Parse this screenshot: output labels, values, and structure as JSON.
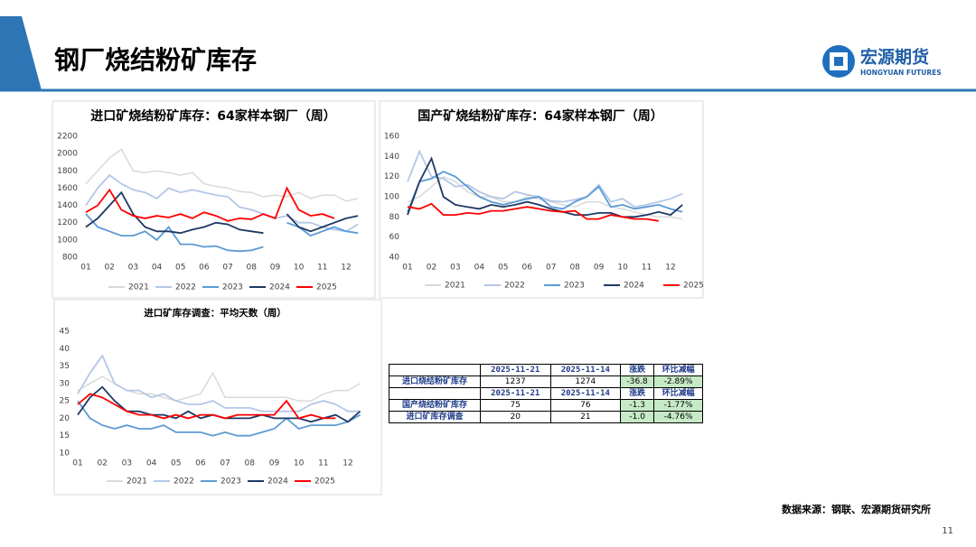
{
  "header": {
    "title": "钢厂烧结粉矿库存",
    "logo_cn": "宏源期货",
    "logo_en": "HONGYUAN FUTURES"
  },
  "chart_data": [
    {
      "type": "line",
      "title": "进口矿烧结粉矿库存：64家样本钢厂（周）",
      "categories": [
        "01",
        null,
        "02",
        null,
        "03",
        null,
        "04",
        null,
        "05",
        null,
        "06",
        null,
        "07",
        null,
        "08",
        null,
        "09",
        null,
        "10",
        null,
        "11",
        null,
        "12",
        null
      ],
      "ylim": [
        800,
        2200
      ],
      "yticks": [
        800,
        1000,
        1200,
        1400,
        1600,
        1800,
        2000,
        2200
      ],
      "series": [
        {
          "name": "2021",
          "color": "#d9d9d9",
          "values": [
            1650,
            1800,
            1950,
            2050,
            1800,
            1780,
            1800,
            1780,
            1750,
            1780,
            1650,
            1620,
            1600,
            1560,
            1550,
            1500,
            1520,
            1500,
            1550,
            1480,
            1520,
            1520,
            1450,
            1480
          ]
        },
        {
          "name": "2022",
          "color": "#b4c7e7",
          "values": [
            1400,
            1600,
            1750,
            1650,
            1580,
            1550,
            1480,
            1600,
            1550,
            1580,
            1550,
            1520,
            1500,
            1380,
            1350,
            1300,
            1250,
            1280,
            1200,
            1200,
            1150,
            1120,
            1100,
            1180
          ]
        },
        {
          "name": "2023",
          "color": "#5b9bd5",
          "values": [
            1300,
            1150,
            1100,
            1050,
            1050,
            1100,
            1000,
            1150,
            950,
            950,
            920,
            930,
            880,
            870,
            880,
            920,
            null,
            1200,
            1150,
            1050,
            1100,
            1150,
            1100,
            1080
          ]
        },
        {
          "name": "2024",
          "color": "#1f3864",
          "values": [
            1150,
            1250,
            1400,
            1550,
            1300,
            1150,
            1100,
            1100,
            1080,
            1120,
            1150,
            1200,
            1180,
            1120,
            1100,
            1080,
            null,
            1300,
            1150,
            1100,
            1150,
            1200,
            1250,
            1280
          ]
        },
        {
          "name": "2025",
          "color": "#ff0000",
          "values": [
            1320,
            1400,
            1580,
            1350,
            1280,
            1250,
            1280,
            1260,
            1300,
            1250,
            1320,
            1280,
            1220,
            1250,
            1240,
            1300,
            1250,
            1600,
            1350,
            1280,
            1300,
            1250,
            null,
            null
          ]
        }
      ]
    },
    {
      "type": "line",
      "title": "国产矿烧结粉矿库存：64家样本钢厂（周）",
      "categories": [
        "01",
        null,
        "02",
        null,
        "03",
        null,
        "04",
        null,
        "05",
        null,
        "06",
        null,
        "07",
        null,
        "08",
        null,
        "09",
        null,
        "10",
        null,
        "11",
        null,
        "12",
        null
      ],
      "ylim": [
        40,
        160
      ],
      "yticks": [
        40,
        60,
        80,
        100,
        120,
        140,
        160
      ],
      "series": [
        {
          "name": "2021",
          "color": "#d9d9d9",
          "values": [
            95,
            100,
            110,
            120,
            115,
            105,
            100,
            100,
            95,
            95,
            100,
            98,
            95,
            92,
            90,
            95,
            95,
            90,
            88,
            85,
            82,
            80,
            80,
            78
          ]
        },
        {
          "name": "2022",
          "color": "#b4c7e7",
          "values": [
            115,
            145,
            120,
            118,
            110,
            112,
            105,
            100,
            98,
            105,
            102,
            100,
            96,
            95,
            97,
            100,
            112,
            95,
            98,
            90,
            92,
            95,
            98,
            103
          ]
        },
        {
          "name": "2023",
          "color": "#5b9bd5",
          "values": [
            85,
            115,
            118,
            125,
            120,
            110,
            100,
            95,
            92,
            95,
            98,
            100,
            90,
            88,
            95,
            100,
            110,
            90,
            92,
            88,
            90,
            92,
            88,
            85
          ]
        },
        {
          "name": "2024",
          "color": "#1f3864",
          "values": [
            82,
            115,
            138,
            100,
            92,
            90,
            88,
            92,
            90,
            92,
            95,
            92,
            88,
            85,
            82,
            82,
            84,
            84,
            80,
            80,
            82,
            85,
            82,
            92
          ]
        },
        {
          "name": "2025",
          "color": "#ff0000",
          "values": [
            90,
            88,
            93,
            82,
            82,
            84,
            83,
            86,
            86,
            88,
            90,
            88,
            86,
            85,
            86,
            78,
            78,
            82,
            80,
            78,
            78,
            76,
            null,
            null
          ]
        }
      ]
    },
    {
      "type": "line",
      "title": "进口矿库存调查：平均天数（周）",
      "categories": [
        "01",
        null,
        "02",
        null,
        "03",
        null,
        "04",
        null,
        "05",
        null,
        "06",
        null,
        "07",
        null,
        "08",
        null,
        "09",
        null,
        "10",
        null,
        "11",
        null,
        "12",
        null
      ],
      "ylim": [
        10,
        45
      ],
      "yticks": [
        10,
        15,
        20,
        25,
        30,
        35,
        40,
        45
      ],
      "series": [
        {
          "name": "2021",
          "color": "#d9d9d9",
          "values": [
            28,
            30,
            32,
            30,
            28,
            27,
            27,
            26,
            25,
            26,
            27,
            33,
            26,
            26,
            26,
            26,
            26,
            26,
            25,
            25,
            27,
            28,
            28,
            30
          ]
        },
        {
          "name": "2022",
          "color": "#b4c7e7",
          "values": [
            27,
            33,
            38,
            30,
            28,
            28,
            26,
            27,
            25,
            24,
            24,
            25,
            23,
            23,
            23,
            22,
            22,
            22,
            22,
            24,
            25,
            24,
            22,
            22
          ]
        },
        {
          "name": "2023",
          "color": "#5b9bd5",
          "values": [
            25,
            20,
            18,
            17,
            18,
            17,
            17,
            18,
            16,
            16,
            16,
            15,
            16,
            15,
            15,
            16,
            17,
            20,
            17,
            18,
            18,
            18,
            19,
            21
          ]
        },
        {
          "name": "2024",
          "color": "#1f3864",
          "values": [
            21,
            26,
            29,
            25,
            22,
            22,
            21,
            21,
            20,
            22,
            20,
            21,
            20,
            20,
            20,
            21,
            20,
            20,
            20,
            19,
            20,
            21,
            19,
            22
          ]
        },
        {
          "name": "2025",
          "color": "#ff0000",
          "values": [
            24,
            27,
            26,
            24,
            22,
            21,
            21,
            20,
            21,
            20,
            21,
            21,
            20,
            21,
            21,
            21,
            21,
            25,
            20,
            21,
            20,
            20,
            null,
            null
          ]
        }
      ]
    }
  ],
  "table": {
    "rows": [
      [
        null,
        "2025-11-21",
        "2025-11-14",
        "涨跌",
        "环比减幅"
      ],
      [
        "进口烧结粉矿库存",
        "1237",
        "1274",
        "-36.8",
        "-2.89%"
      ],
      [
        null,
        "2025-11-21",
        "2025-11-14",
        "涨跌",
        "环比减幅"
      ],
      [
        "国产烧结粉矿库存",
        "75",
        "76",
        "-1.3",
        "-1.77%"
      ],
      [
        "进口矿库存调查",
        "20",
        "21",
        "-1.0",
        "-4.76%"
      ]
    ]
  },
  "footer": {
    "source": "数据来源：钢联、宏源期货研究所",
    "page": "11"
  }
}
